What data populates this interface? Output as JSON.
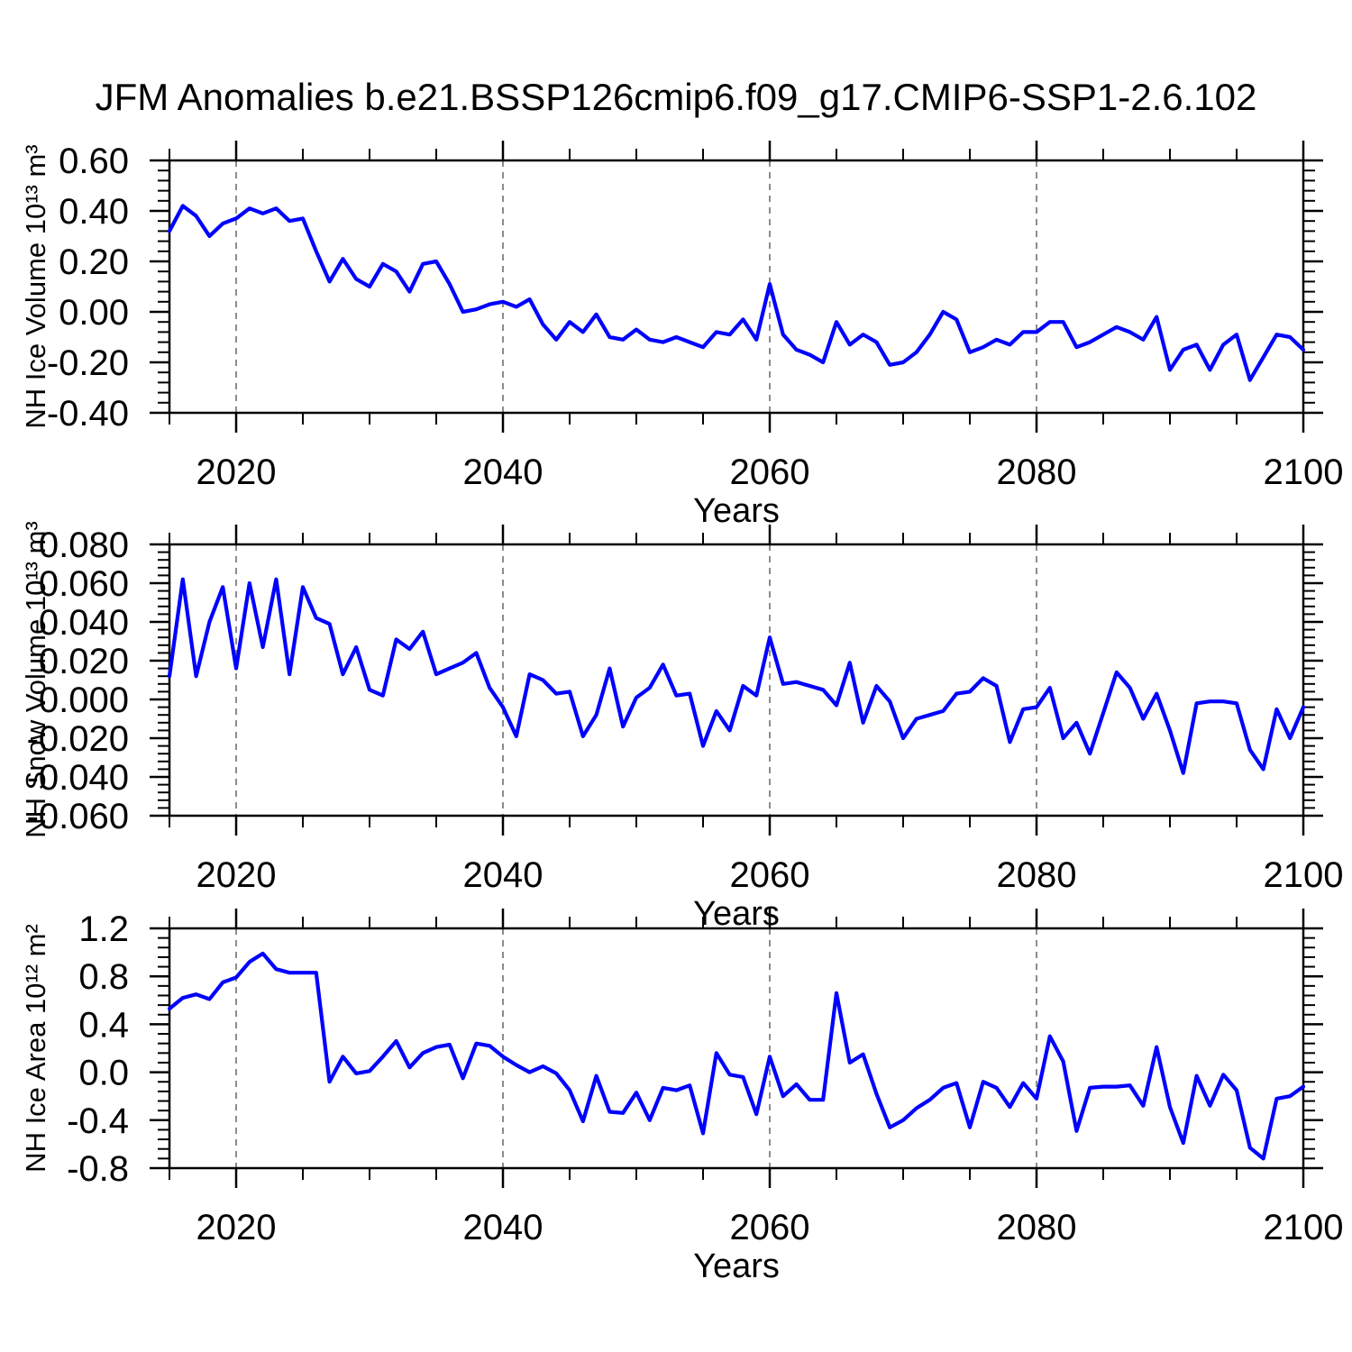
{
  "figure": {
    "title": "JFM Anomalies b.e21.BSSP126cmip6.f09_g17.CMIP6-SSP1-2.6.102",
    "background": "#ffffff",
    "line_color": "#0000ff",
    "gridline_color": "#808080",
    "axis_color": "#000000",
    "text_color": "#000000"
  },
  "chart_data": [
    {
      "type": "line",
      "panel": 1,
      "ylabel": "NH Ice Volume 10¹³ m³",
      "xlabel": "Years",
      "x_start": 2015,
      "x_end": 2100,
      "x_step": 1,
      "ylim": [
        -0.4,
        0.6
      ],
      "ytick_values": [
        0.6,
        0.4,
        0.2,
        0.0,
        -0.2,
        -0.4
      ],
      "ytick_labels": [
        "0.60",
        "0.40",
        "0.20",
        "0.00",
        "-0.20",
        "-0.40"
      ],
      "y_minors_per_interval": 4,
      "xtick_values": [
        2020,
        2040,
        2060,
        2080,
        2100
      ],
      "xtick_labels": [
        "2020",
        "2040",
        "2060",
        "2080",
        "2100"
      ],
      "x_minor_step": 5,
      "grid_x_values": [
        2020,
        2040,
        2060,
        2080
      ],
      "grid_style": "dashed",
      "legend": "none",
      "values": [
        0.32,
        0.42,
        0.38,
        0.3,
        0.35,
        0.37,
        0.41,
        0.39,
        0.41,
        0.36,
        0.37,
        0.24,
        0.12,
        0.21,
        0.13,
        0.1,
        0.19,
        0.16,
        0.08,
        0.19,
        0.2,
        0.11,
        0.0,
        0.01,
        0.03,
        0.04,
        0.02,
        0.05,
        -0.05,
        -0.11,
        -0.04,
        -0.08,
        -0.01,
        -0.1,
        -0.11,
        -0.07,
        -0.11,
        -0.12,
        -0.1,
        -0.12,
        -0.14,
        -0.08,
        -0.09,
        -0.03,
        -0.11,
        0.11,
        -0.09,
        -0.15,
        -0.17,
        -0.2,
        -0.04,
        -0.13,
        -0.09,
        -0.12,
        -0.21,
        -0.2,
        -0.16,
        -0.09,
        0.0,
        -0.03,
        -0.16,
        -0.14,
        -0.11,
        -0.13,
        -0.08,
        -0.08,
        -0.04,
        -0.04,
        -0.14,
        -0.12,
        -0.09,
        -0.06,
        -0.08,
        -0.11,
        -0.02,
        -0.23,
        -0.15,
        -0.13,
        -0.23,
        -0.13,
        -0.09,
        -0.27,
        -0.18,
        -0.09,
        -0.1,
        -0.15
      ]
    },
    {
      "type": "line",
      "panel": 2,
      "ylabel": "NH Snow Volume 10¹³ m³",
      "xlabel": "Years",
      "x_start": 2015,
      "x_end": 2100,
      "x_step": 1,
      "ylim": [
        -0.06,
        0.08
      ],
      "ytick_values": [
        0.08,
        0.06,
        0.04,
        0.02,
        0.0,
        -0.02,
        -0.04,
        -0.06
      ],
      "ytick_labels": [
        "0.080",
        "0.060",
        "0.040",
        "0.020",
        "0.000",
        "-0.020",
        "-0.040",
        "-0.060"
      ],
      "y_minors_per_interval": 4,
      "xtick_values": [
        2020,
        2040,
        2060,
        2080,
        2100
      ],
      "xtick_labels": [
        "2020",
        "2040",
        "2060",
        "2080",
        "2100"
      ],
      "x_minor_step": 5,
      "grid_x_values": [
        2020,
        2040,
        2060,
        2080
      ],
      "grid_style": "dashed",
      "legend": "none",
      "values": [
        0.012,
        0.062,
        0.012,
        0.04,
        0.058,
        0.016,
        0.06,
        0.027,
        0.062,
        0.013,
        0.058,
        0.042,
        0.039,
        0.013,
        0.027,
        0.005,
        0.002,
        0.031,
        0.026,
        0.035,
        0.013,
        0.016,
        0.019,
        0.024,
        0.006,
        -0.004,
        -0.019,
        0.013,
        0.01,
        0.003,
        0.004,
        -0.019,
        -0.008,
        0.016,
        -0.014,
        0.001,
        0.006,
        0.018,
        0.002,
        0.003,
        -0.024,
        -0.006,
        -0.016,
        0.007,
        0.002,
        0.032,
        0.008,
        0.009,
        0.007,
        0.005,
        -0.003,
        0.019,
        -0.012,
        0.007,
        -0.001,
        -0.02,
        -0.01,
        -0.008,
        -0.006,
        0.003,
        0.004,
        0.011,
        0.007,
        -0.022,
        -0.005,
        -0.004,
        0.006,
        -0.02,
        -0.012,
        -0.028,
        -0.007,
        0.014,
        0.006,
        -0.01,
        0.003,
        -0.016,
        -0.038,
        -0.002,
        -0.001,
        -0.001,
        -0.002,
        -0.026,
        -0.036,
        -0.005,
        -0.02,
        -0.004
      ]
    },
    {
      "type": "line",
      "panel": 3,
      "ylabel": "NH Ice Area 10¹² m²",
      "xlabel": "Years",
      "x_start": 2015,
      "x_end": 2100,
      "x_step": 1,
      "ylim": [
        -0.8,
        1.2
      ],
      "ytick_values": [
        1.2,
        0.8,
        0.4,
        0.0,
        -0.4,
        -0.8
      ],
      "ytick_labels": [
        "1.2",
        "0.8",
        "0.4",
        "0.0",
        "-0.4",
        "-0.8"
      ],
      "y_minors_per_interval": 4,
      "xtick_values": [
        2020,
        2040,
        2060,
        2080,
        2100
      ],
      "xtick_labels": [
        "2020",
        "2040",
        "2060",
        "2080",
        "2100"
      ],
      "x_minor_step": 5,
      "grid_x_values": [
        2020,
        2040,
        2060,
        2080
      ],
      "grid_style": "dashed",
      "legend": "none",
      "values": [
        0.53,
        0.62,
        0.65,
        0.61,
        0.75,
        0.79,
        0.92,
        0.99,
        0.86,
        0.83,
        0.83,
        0.83,
        -0.08,
        0.13,
        -0.01,
        0.01,
        0.13,
        0.26,
        0.04,
        0.16,
        0.21,
        0.23,
        -0.05,
        0.24,
        0.22,
        0.13,
        0.06,
        0.0,
        0.05,
        -0.01,
        -0.15,
        -0.41,
        -0.03,
        -0.33,
        -0.34,
        -0.17,
        -0.4,
        -0.13,
        -0.15,
        -0.11,
        -0.51,
        0.16,
        -0.02,
        -0.04,
        -0.35,
        0.13,
        -0.2,
        -0.1,
        -0.23,
        -0.23,
        0.66,
        0.08,
        0.15,
        -0.18,
        -0.46,
        -0.4,
        -0.3,
        -0.23,
        -0.13,
        -0.09,
        -0.46,
        -0.08,
        -0.13,
        -0.29,
        -0.09,
        -0.22,
        0.3,
        0.09,
        -0.49,
        -0.13,
        -0.12,
        -0.12,
        -0.11,
        -0.28,
        0.21,
        -0.29,
        -0.59,
        -0.03,
        -0.28,
        -0.02,
        -0.15,
        -0.63,
        -0.72,
        -0.22,
        -0.2,
        -0.12
      ]
    }
  ]
}
